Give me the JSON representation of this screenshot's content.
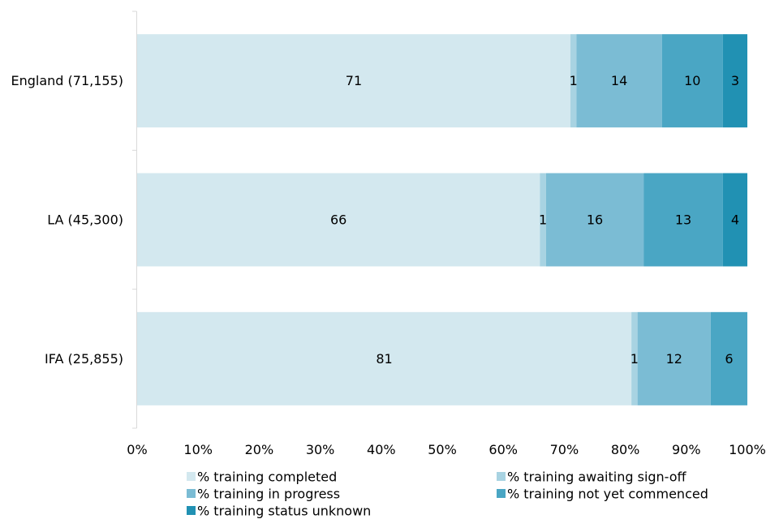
{
  "chart_data": {
    "type": "bar",
    "orientation": "horizontal",
    "stacked": true,
    "categories": [
      "England (71,155)",
      "LA (45,300)",
      "IFA (25,855)"
    ],
    "series": [
      {
        "name": "% training completed",
        "values": [
          71,
          66,
          81
        ],
        "color": "#d3e8ef"
      },
      {
        "name": "% training awaiting sign-off",
        "values": [
          1,
          1,
          1
        ],
        "color": "#a8d3e2"
      },
      {
        "name": "% training in progress",
        "values": [
          14,
          16,
          12
        ],
        "color": "#7bbcd4"
      },
      {
        "name": "% training not yet commenced",
        "values": [
          10,
          13,
          6
        ],
        "color": "#4aa6c4"
      },
      {
        "name": "% training status unknown",
        "values": [
          3,
          4,
          null
        ],
        "color": "#2191b3"
      }
    ],
    "xlim": [
      0,
      100
    ],
    "ticks": [
      "0%",
      "10%",
      "20%",
      "30%",
      "40%",
      "50%",
      "60%",
      "70%",
      "80%",
      "90%",
      "100%"
    ],
    "legend_position": "bottom",
    "grid": false
  }
}
